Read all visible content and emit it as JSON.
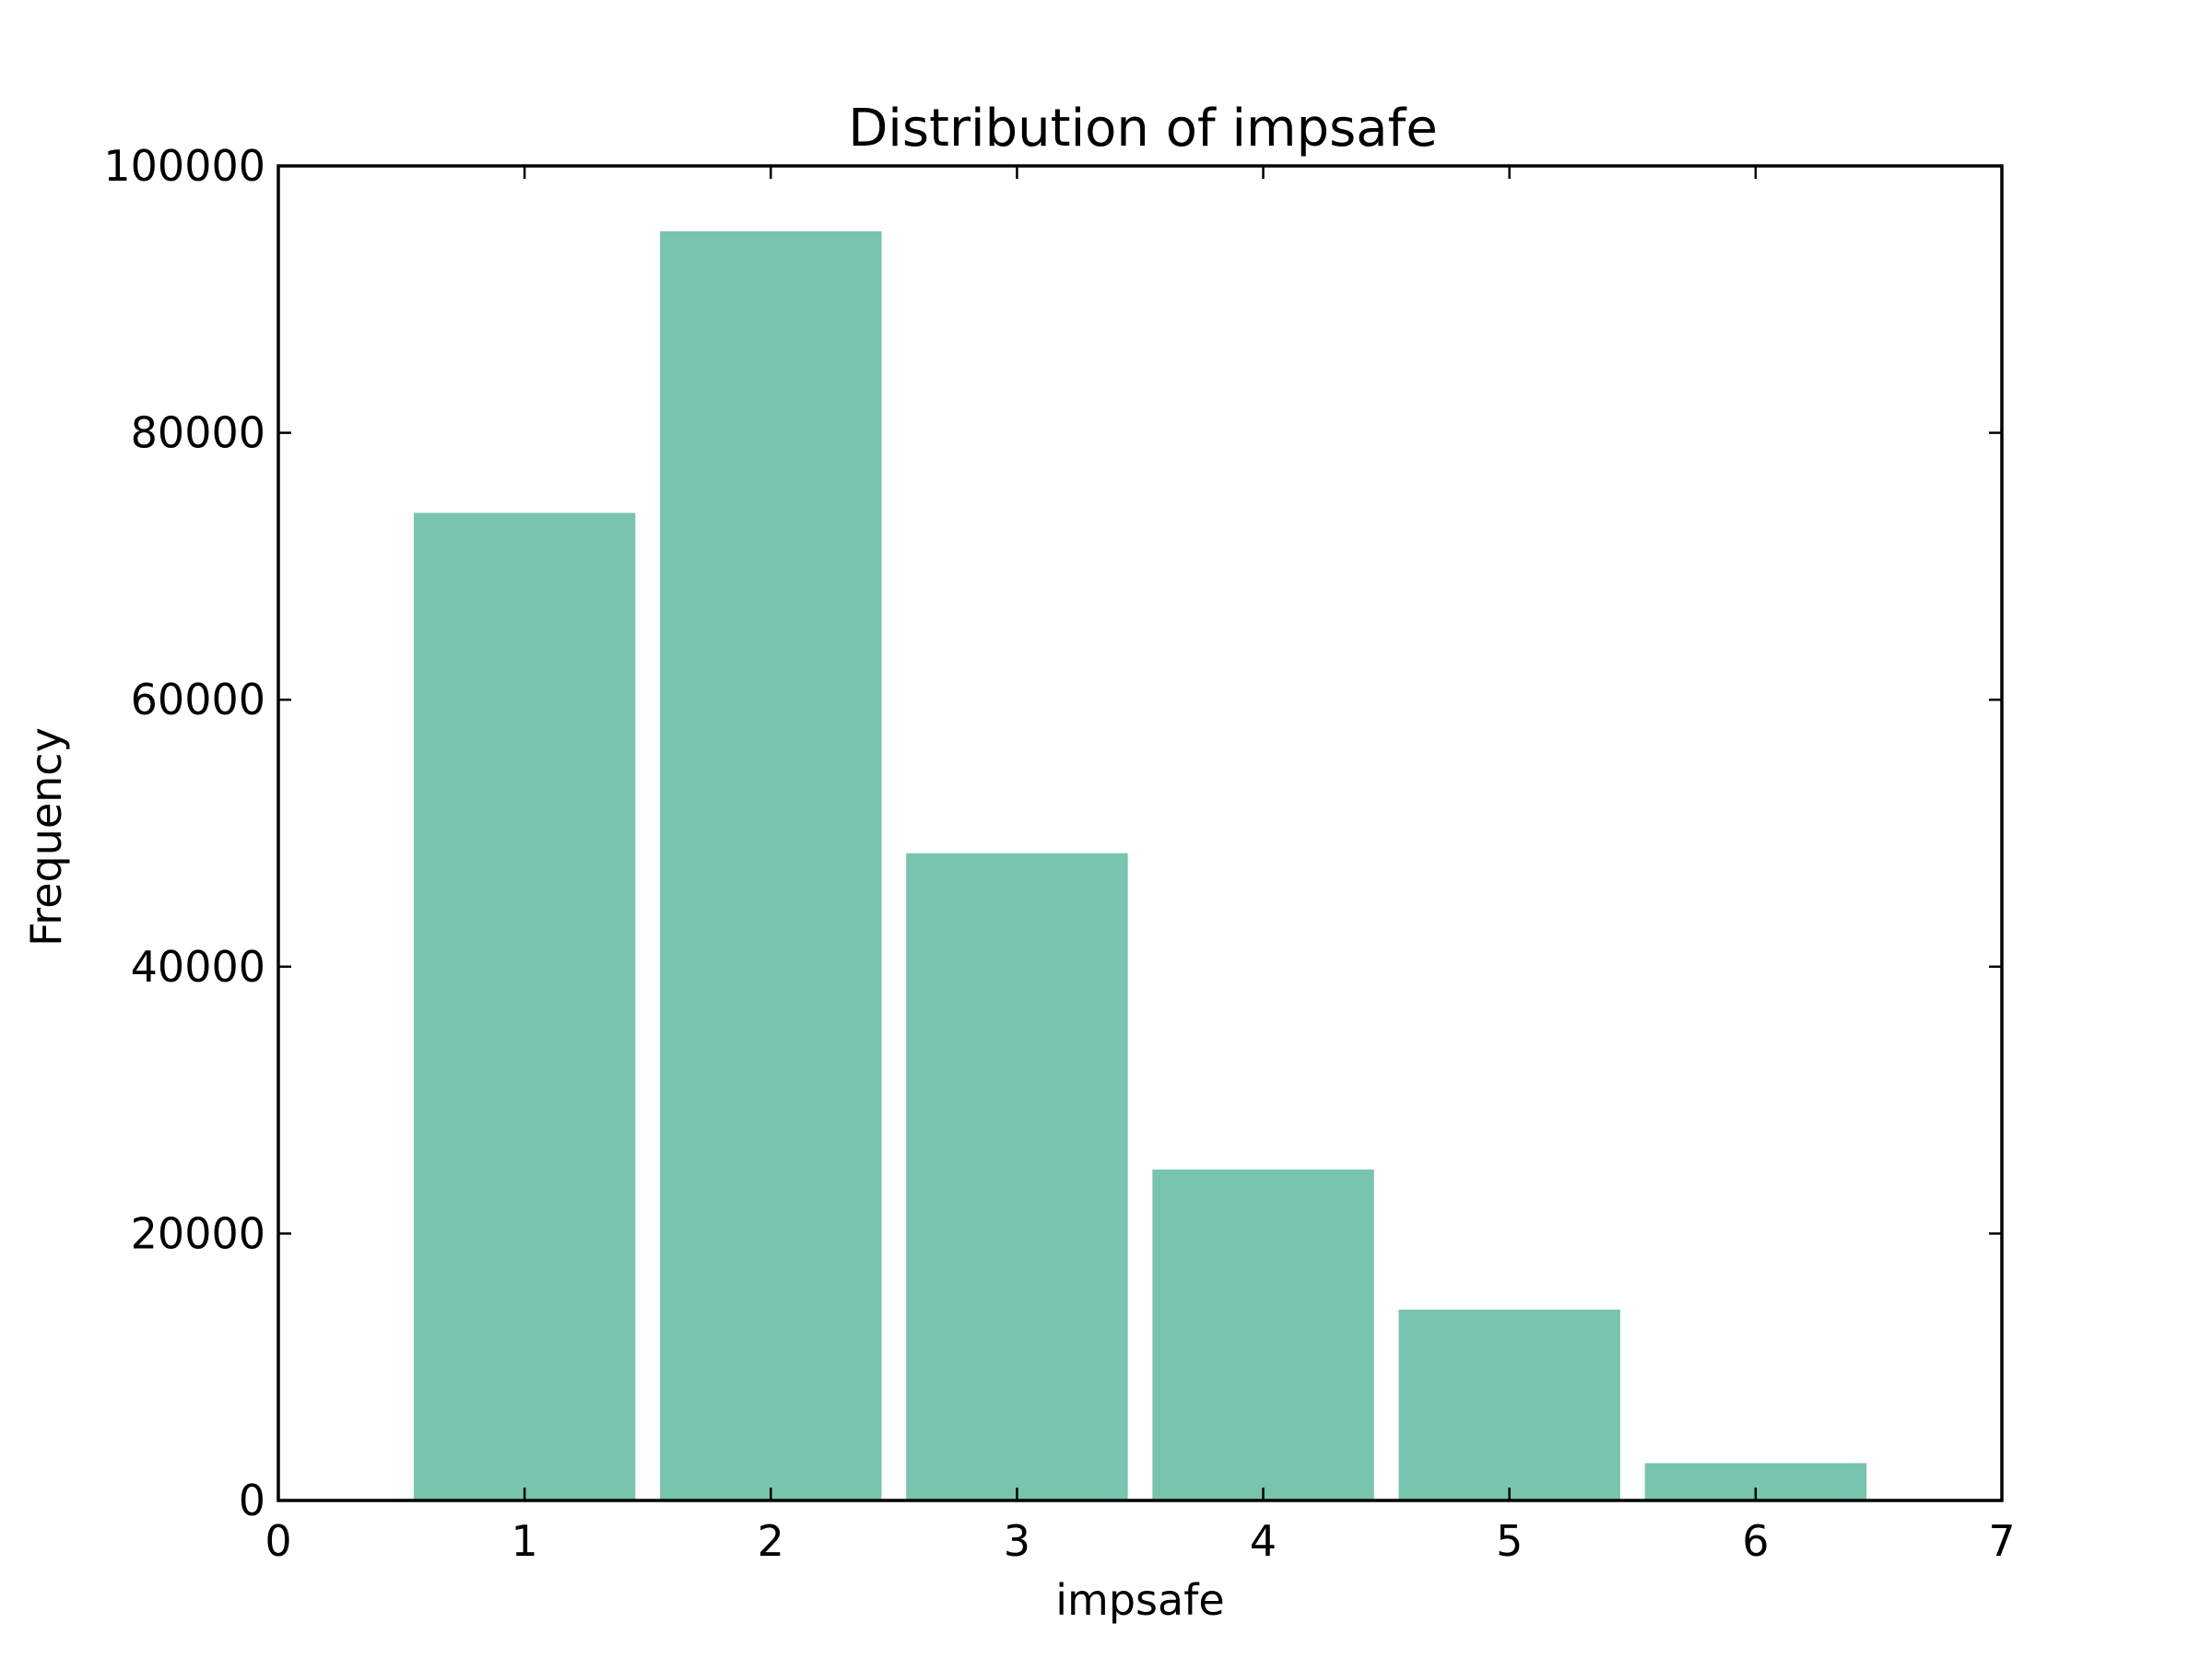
{
  "chart_data": {
    "type": "bar",
    "title": "Distribution of impsafe",
    "xlabel": "impsafe",
    "ylabel": "Frequency",
    "x": [
      1,
      2,
      3,
      4,
      5,
      6
    ],
    "values": [
      74000,
      95100,
      48500,
      24800,
      14300,
      2800
    ],
    "bar_width": 0.9,
    "xlim": [
      0,
      7
    ],
    "ylim": [
      0,
      100000
    ],
    "xticks": [
      0,
      1,
      2,
      3,
      4,
      5,
      6,
      7
    ],
    "xtick_labels": [
      "0",
      "1",
      "2",
      "3",
      "4",
      "5",
      "6",
      "7"
    ],
    "yticks": [
      0,
      20000,
      40000,
      60000,
      80000,
      100000
    ],
    "ytick_labels": [
      "0",
      "20000",
      "40000",
      "60000",
      "80000",
      "100000"
    ],
    "bar_color": "#78c4ae",
    "grid": false,
    "legend": "none"
  }
}
